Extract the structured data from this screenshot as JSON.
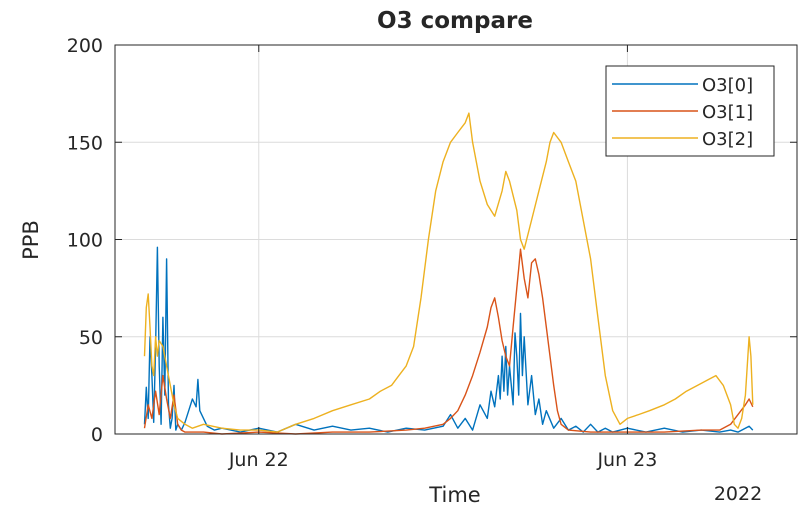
{
  "chart_data": {
    "type": "line",
    "title": "O3 compare",
    "xlabel": "Time",
    "ylabel": "PPB",
    "x_secondary_label": "2022",
    "x_unit": "days from Jun 22 2022 00:00",
    "xlim": [
      -0.39,
      1.46
    ],
    "ylim": [
      0,
      200
    ],
    "yticks": [
      0,
      50,
      100,
      150,
      200
    ],
    "xticks": [
      {
        "value": 0,
        "label": "Jun 22"
      },
      {
        "value": 1,
        "label": "Jun 23"
      }
    ],
    "grid": true,
    "legend_position": "top-right",
    "series": [
      {
        "name": "O3[0]",
        "color": "#0072BD",
        "points": [
          [
            -0.31,
            5
          ],
          [
            -0.305,
            24
          ],
          [
            -0.3,
            8
          ],
          [
            -0.295,
            50
          ],
          [
            -0.29,
            30
          ],
          [
            -0.285,
            6
          ],
          [
            -0.28,
            45
          ],
          [
            -0.275,
            96
          ],
          [
            -0.27,
            35
          ],
          [
            -0.265,
            5
          ],
          [
            -0.26,
            60
          ],
          [
            -0.255,
            20
          ],
          [
            -0.25,
            90
          ],
          [
            -0.245,
            15
          ],
          [
            -0.24,
            3
          ],
          [
            -0.235,
            8
          ],
          [
            -0.23,
            25
          ],
          [
            -0.225,
            2
          ],
          [
            -0.22,
            5
          ],
          [
            -0.21,
            2
          ],
          [
            -0.2,
            6
          ],
          [
            -0.19,
            12
          ],
          [
            -0.18,
            18
          ],
          [
            -0.17,
            14
          ],
          [
            -0.165,
            28
          ],
          [
            -0.16,
            12
          ],
          [
            -0.15,
            8
          ],
          [
            -0.14,
            4
          ],
          [
            -0.12,
            2
          ],
          [
            -0.1,
            3
          ],
          [
            -0.05,
            1
          ],
          [
            0.0,
            3
          ],
          [
            0.05,
            1
          ],
          [
            0.1,
            5
          ],
          [
            0.15,
            2
          ],
          [
            0.2,
            4
          ],
          [
            0.25,
            2
          ],
          [
            0.3,
            3
          ],
          [
            0.35,
            1
          ],
          [
            0.4,
            3
          ],
          [
            0.45,
            2
          ],
          [
            0.5,
            4
          ],
          [
            0.52,
            10
          ],
          [
            0.54,
            3
          ],
          [
            0.56,
            8
          ],
          [
            0.58,
            2
          ],
          [
            0.6,
            15
          ],
          [
            0.62,
            8
          ],
          [
            0.63,
            22
          ],
          [
            0.64,
            14
          ],
          [
            0.65,
            30
          ],
          [
            0.655,
            18
          ],
          [
            0.66,
            40
          ],
          [
            0.665,
            22
          ],
          [
            0.67,
            45
          ],
          [
            0.675,
            20
          ],
          [
            0.68,
            35
          ],
          [
            0.69,
            15
          ],
          [
            0.695,
            52
          ],
          [
            0.7,
            40
          ],
          [
            0.705,
            20
          ],
          [
            0.71,
            62
          ],
          [
            0.715,
            30
          ],
          [
            0.72,
            50
          ],
          [
            0.73,
            15
          ],
          [
            0.74,
            30
          ],
          [
            0.75,
            10
          ],
          [
            0.76,
            18
          ],
          [
            0.77,
            5
          ],
          [
            0.78,
            12
          ],
          [
            0.8,
            3
          ],
          [
            0.82,
            8
          ],
          [
            0.84,
            2
          ],
          [
            0.86,
            4
          ],
          [
            0.88,
            1
          ],
          [
            0.9,
            5
          ],
          [
            0.92,
            1
          ],
          [
            0.94,
            3
          ],
          [
            0.96,
            1
          ],
          [
            1.0,
            3
          ],
          [
            1.05,
            1
          ],
          [
            1.1,
            3
          ],
          [
            1.15,
            1
          ],
          [
            1.2,
            2
          ],
          [
            1.25,
            1
          ],
          [
            1.28,
            2
          ],
          [
            1.3,
            1
          ],
          [
            1.33,
            4
          ],
          [
            1.34,
            2
          ]
        ]
      },
      {
        "name": "O3[1]",
        "color": "#D95319",
        "points": [
          [
            -0.31,
            3
          ],
          [
            -0.3,
            15
          ],
          [
            -0.29,
            8
          ],
          [
            -0.28,
            22
          ],
          [
            -0.27,
            10
          ],
          [
            -0.26,
            30
          ],
          [
            -0.25,
            18
          ],
          [
            -0.24,
            8
          ],
          [
            -0.23,
            20
          ],
          [
            -0.22,
            5
          ],
          [
            -0.21,
            2
          ],
          [
            -0.2,
            1
          ],
          [
            -0.15,
            1
          ],
          [
            -0.1,
            0
          ],
          [
            0.0,
            1
          ],
          [
            0.1,
            0
          ],
          [
            0.2,
            1
          ],
          [
            0.3,
            1
          ],
          [
            0.4,
            2
          ],
          [
            0.45,
            3
          ],
          [
            0.5,
            5
          ],
          [
            0.52,
            8
          ],
          [
            0.54,
            12
          ],
          [
            0.56,
            20
          ],
          [
            0.58,
            30
          ],
          [
            0.6,
            42
          ],
          [
            0.62,
            55
          ],
          [
            0.63,
            65
          ],
          [
            0.64,
            70
          ],
          [
            0.65,
            60
          ],
          [
            0.66,
            48
          ],
          [
            0.67,
            40
          ],
          [
            0.68,
            35
          ],
          [
            0.69,
            55
          ],
          [
            0.7,
            75
          ],
          [
            0.705,
            85
          ],
          [
            0.71,
            95
          ],
          [
            0.72,
            80
          ],
          [
            0.73,
            70
          ],
          [
            0.74,
            88
          ],
          [
            0.75,
            90
          ],
          [
            0.76,
            82
          ],
          [
            0.77,
            70
          ],
          [
            0.78,
            55
          ],
          [
            0.79,
            40
          ],
          [
            0.8,
            25
          ],
          [
            0.81,
            12
          ],
          [
            0.82,
            5
          ],
          [
            0.84,
            2
          ],
          [
            0.9,
            1
          ],
          [
            1.0,
            1
          ],
          [
            1.1,
            1
          ],
          [
            1.2,
            2
          ],
          [
            1.25,
            2
          ],
          [
            1.28,
            5
          ],
          [
            1.3,
            10
          ],
          [
            1.32,
            15
          ],
          [
            1.33,
            18
          ],
          [
            1.34,
            14
          ]
        ]
      },
      {
        "name": "O3[2]",
        "color": "#EDB120",
        "points": [
          [
            -0.31,
            40
          ],
          [
            -0.305,
            65
          ],
          [
            -0.3,
            72
          ],
          [
            -0.295,
            55
          ],
          [
            -0.29,
            35
          ],
          [
            -0.285,
            30
          ],
          [
            -0.28,
            50
          ],
          [
            -0.275,
            40
          ],
          [
            -0.27,
            48
          ],
          [
            -0.26,
            45
          ],
          [
            -0.25,
            35
          ],
          [
            -0.24,
            25
          ],
          [
            -0.23,
            15
          ],
          [
            -0.22,
            8
          ],
          [
            -0.2,
            5
          ],
          [
            -0.18,
            3
          ],
          [
            -0.15,
            5
          ],
          [
            -0.1,
            3
          ],
          [
            -0.05,
            2
          ],
          [
            0.0,
            2
          ],
          [
            0.05,
            1
          ],
          [
            0.1,
            5
          ],
          [
            0.15,
            8
          ],
          [
            0.2,
            12
          ],
          [
            0.25,
            15
          ],
          [
            0.3,
            18
          ],
          [
            0.33,
            22
          ],
          [
            0.36,
            25
          ],
          [
            0.38,
            30
          ],
          [
            0.4,
            35
          ],
          [
            0.42,
            45
          ],
          [
            0.44,
            70
          ],
          [
            0.46,
            100
          ],
          [
            0.48,
            125
          ],
          [
            0.5,
            140
          ],
          [
            0.52,
            150
          ],
          [
            0.54,
            155
          ],
          [
            0.56,
            160
          ],
          [
            0.57,
            165
          ],
          [
            0.58,
            150
          ],
          [
            0.6,
            130
          ],
          [
            0.62,
            118
          ],
          [
            0.64,
            112
          ],
          [
            0.66,
            125
          ],
          [
            0.67,
            135
          ],
          [
            0.68,
            130
          ],
          [
            0.7,
            115
          ],
          [
            0.71,
            100
          ],
          [
            0.72,
            95
          ],
          [
            0.74,
            110
          ],
          [
            0.76,
            125
          ],
          [
            0.78,
            140
          ],
          [
            0.79,
            150
          ],
          [
            0.8,
            155
          ],
          [
            0.82,
            150
          ],
          [
            0.84,
            140
          ],
          [
            0.86,
            130
          ],
          [
            0.88,
            110
          ],
          [
            0.9,
            90
          ],
          [
            0.92,
            60
          ],
          [
            0.94,
            30
          ],
          [
            0.96,
            12
          ],
          [
            0.98,
            5
          ],
          [
            1.0,
            8
          ],
          [
            1.03,
            10
          ],
          [
            1.06,
            12
          ],
          [
            1.1,
            15
          ],
          [
            1.13,
            18
          ],
          [
            1.16,
            22
          ],
          [
            1.19,
            25
          ],
          [
            1.22,
            28
          ],
          [
            1.24,
            30
          ],
          [
            1.26,
            25
          ],
          [
            1.28,
            15
          ],
          [
            1.29,
            5
          ],
          [
            1.3,
            3
          ],
          [
            1.31,
            8
          ],
          [
            1.32,
            20
          ],
          [
            1.33,
            50
          ],
          [
            1.335,
            40
          ],
          [
            1.34,
            15
          ]
        ]
      }
    ]
  }
}
